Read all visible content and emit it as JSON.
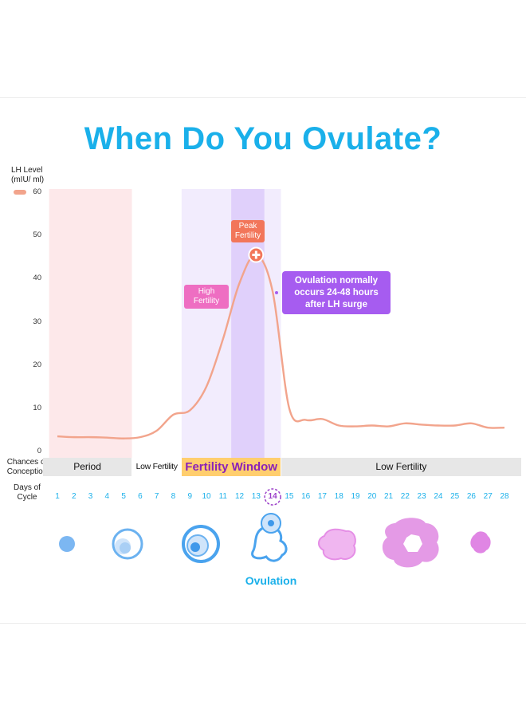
{
  "title": "When Do You Ovulate?",
  "y_axis_label": "LH Level\n(mIU/ ml)",
  "legend_swatch_color": "#f2a48c",
  "chart_data": {
    "type": "line",
    "title": "When Do You Ovulate?",
    "ylabel": "LH Level (mIU/ ml)",
    "xlabel": "Days of Cycle",
    "ylim": [
      0,
      60
    ],
    "yticks": [
      0,
      10,
      20,
      30,
      40,
      50,
      60
    ],
    "x": [
      1,
      2,
      3,
      4,
      5,
      6,
      7,
      8,
      9,
      10,
      11,
      12,
      13,
      14,
      15,
      16,
      17,
      18,
      19,
      20,
      21,
      22,
      23,
      24,
      25,
      26,
      27,
      28
    ],
    "series": [
      {
        "name": "",
        "color": "#f2a48c",
        "values": [
          3.5,
          3.3,
          3.3,
          3.2,
          3.0,
          3.3,
          4.8,
          8.5,
          9.5,
          15,
          26,
          39,
          45.5,
          37,
          10,
          7.3,
          7.5,
          6,
          5.8,
          6,
          5.8,
          6.5,
          6.2,
          6,
          6,
          6.5,
          5.5,
          5.5
        ]
      }
    ],
    "highlight_regions": [
      {
        "label": "Period",
        "from_day": 1,
        "to_day": 5,
        "color": "#fde8ea"
      },
      {
        "label": "Fertility Window",
        "from_day": 9,
        "to_day": 14,
        "color": "#f2ecfd"
      },
      {
        "label": "Peak",
        "from_day": 12,
        "to_day": 13,
        "color": "#e0d0fb"
      }
    ]
  },
  "conception": {
    "label": "Chances of\nConception",
    "bands": [
      {
        "text": "Period",
        "from_day": 1,
        "to_day": 5,
        "bg": "#e7e7e7",
        "color": "#111111"
      },
      {
        "text": "Low Fertility",
        "from_day": 6,
        "to_day": 8,
        "bg": "#ffffff",
        "color": "#111111"
      },
      {
        "text": "Fertility Window",
        "from_day": 9,
        "to_day": 14,
        "bg": "#ffce6e",
        "color": "#8a22b8"
      },
      {
        "text": "Low Fertility",
        "from_day": 15,
        "to_day": 28,
        "bg": "#e7e7e7",
        "color": "#111111"
      }
    ]
  },
  "days": {
    "label": "Days of\nCycle",
    "values": [
      "1",
      "2",
      "3",
      "4",
      "5",
      "6",
      "7",
      "8",
      "9",
      "10",
      "11",
      "12",
      "13",
      "14",
      "15",
      "16",
      "17",
      "18",
      "19",
      "20",
      "21",
      "22",
      "23",
      "24",
      "25",
      "26",
      "27",
      "28"
    ],
    "ovulation_day": "14"
  },
  "annotations": {
    "high_fertility": "High\nFertility",
    "peak_fertility": "Peak\nFertility",
    "ovulation_note": "Ovulation normally\noccurs 24-48 hours\nafter LH surge"
  },
  "stages": {
    "ovulation_label": "Ovulation"
  },
  "colors": {
    "title": "#1ab0ea",
    "curve": "#f2a48c",
    "high_fertility": "#ee6ec2",
    "peak_fertility": "#f2765a",
    "ovulation_note": "#a65cf0",
    "follicle_blue": "#6cb2f0",
    "corpus_pink": "#e79be8"
  }
}
